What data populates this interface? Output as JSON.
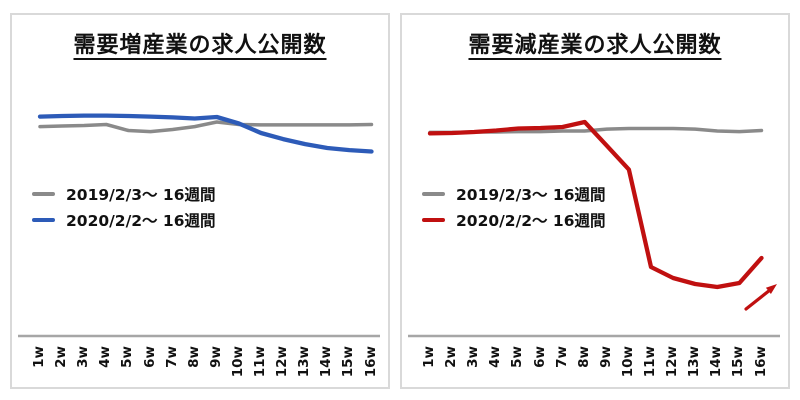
{
  "colors": {
    "gray_series": "#8a8a8a",
    "blue_series": "#2d5bb8",
    "red_series": "#c01010",
    "axis_line": "#a6a6a6",
    "panel_border": "#d9d9d9",
    "text": "#111111"
  },
  "chart_data": [
    {
      "type": "line",
      "title": "需要増産業の求人公開数",
      "x_categories": [
        "1w",
        "2w",
        "3w",
        "4w",
        "5w",
        "6w",
        "7w",
        "8w",
        "9w",
        "10w",
        "11w",
        "12w",
        "13w",
        "14w",
        "15w",
        "16w"
      ],
      "xlabel": "",
      "ylabel": "",
      "y_axis_visible": false,
      "grid": false,
      "legend_position": "middle-left",
      "value_scale_note": "relative index estimated from pixels; no y-axis shown in source, 2019 week1 ≈ 100",
      "series": [
        {
          "id": "2019",
          "name": "2019/2/3〜 16週間",
          "color": "#8a8a8a",
          "values": [
            100.2,
            100.5,
            100.7,
            101.2,
            98.3,
            97.8,
            98.8,
            100.2,
            102.4,
            101.2,
            101,
            101,
            101,
            101,
            101,
            101.2
          ]
        },
        {
          "id": "2020",
          "name": "2020/2/2〜 16週間",
          "color": "#2d5bb8",
          "values": [
            105,
            105.3,
            105.5,
            105.5,
            105.3,
            105,
            104.6,
            104.1,
            104.8,
            101.7,
            97.1,
            94.2,
            91.8,
            89.9,
            88.9,
            88.2
          ]
        }
      ]
    },
    {
      "type": "line",
      "title": "需要減産業の求人公開数",
      "x_categories": [
        "1w",
        "2w",
        "3w",
        "4w",
        "5w",
        "6w",
        "7w",
        "8w",
        "9w",
        "10w",
        "11w",
        "12w",
        "13w",
        "14w",
        "15w",
        "16w"
      ],
      "xlabel": "",
      "ylabel": "",
      "y_axis_visible": false,
      "grid": false,
      "legend_position": "middle-left",
      "value_scale_note": "relative index estimated from pixels; no y-axis shown in source, 2019 week1 ≈ 100",
      "series": [
        {
          "id": "2019",
          "name": "2019/2/3〜 16週間",
          "color": "#8a8a8a",
          "values": [
            97.4,
            97.4,
            97.6,
            97.6,
            97.8,
            97.8,
            98.1,
            98.1,
            99,
            99.3,
            99.3,
            99.3,
            99,
            98.1,
            97.8,
            98.3
          ]
        },
        {
          "id": "2020",
          "name": "2020/2/2〜 16週間",
          "color": "#c01010",
          "values": [
            96.9,
            97.1,
            97.6,
            98.3,
            99.3,
            99.5,
            100,
            102.4,
            91,
            79.5,
            32.7,
            27.4,
            24.5,
            23.1,
            25,
            37
          ]
        }
      ],
      "annotations": [
        {
          "type": "arrow",
          "direction": "up-right",
          "color": "#c01010",
          "position": "below line at weeks 15-16"
        }
      ]
    }
  ]
}
